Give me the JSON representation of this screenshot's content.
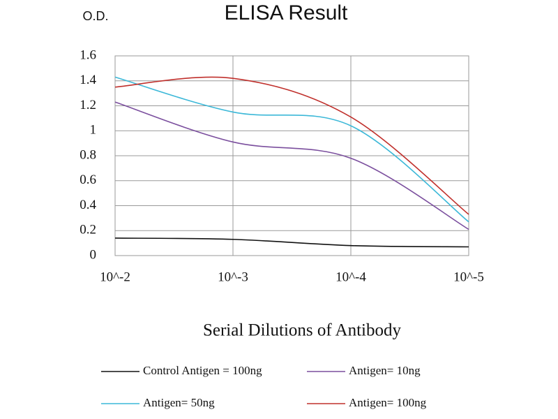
{
  "chart_data": {
    "type": "line",
    "title": "ELISA Result",
    "y_label": "O.D.",
    "x_label": "Serial Dilutions of Antibody",
    "categories": [
      "10^-2",
      "10^-3",
      "10^-4",
      "10^-5"
    ],
    "series": [
      {
        "name": "Control Antigen = 100ng",
        "color": "#111111",
        "values": [
          0.14,
          0.13,
          0.08,
          0.07
        ]
      },
      {
        "name": "Antigen= 10ng",
        "color": "#7b4f9e",
        "values": [
          1.23,
          0.91,
          0.78,
          0.21
        ]
      },
      {
        "name": "Antigen= 50ng",
        "color": "#3cb8d8",
        "values": [
          1.43,
          1.15,
          1.04,
          0.27
        ]
      },
      {
        "name": "Antigen= 100ng",
        "color": "#c0302c",
        "values": [
          1.35,
          1.42,
          1.11,
          0.33
        ]
      }
    ],
    "ylim": [
      0,
      1.6
    ],
    "yticks": [
      0,
      0.2,
      0.4,
      0.6,
      0.8,
      1,
      1.2,
      1.4,
      1.6
    ],
    "grid": true,
    "smooth": true
  }
}
